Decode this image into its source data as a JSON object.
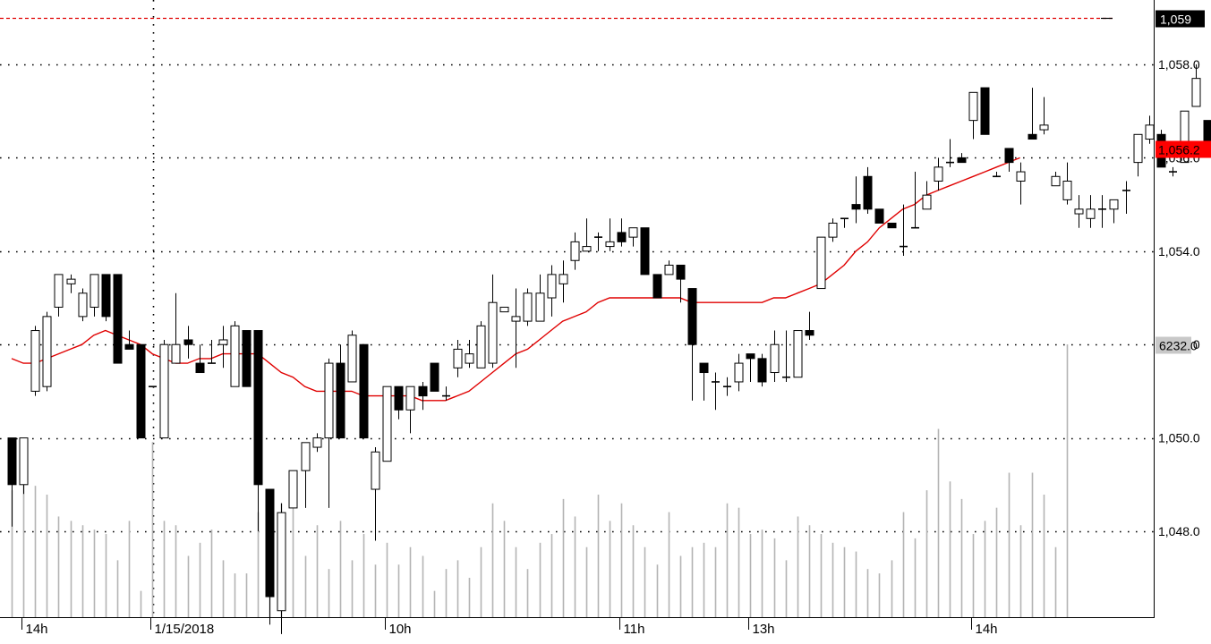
{
  "chart_data": {
    "type": "candlestick",
    "title": "",
    "xlabel": "",
    "ylabel": "",
    "ylim": [
      1045.8,
      1059.4
    ],
    "grid": true,
    "price_ticks": [
      "1,058.0",
      "1,056.0",
      "1,054.0",
      "1,052.0",
      "1,050.0",
      "1,048.0"
    ],
    "time_labels": [
      {
        "text": "14h",
        "index": 1
      },
      {
        "text": "1/15/2018",
        "index": 12
      },
      {
        "text": "10h",
        "index": 32
      },
      {
        "text": "11h",
        "index": 52
      },
      {
        "text": "13h",
        "index": 63
      },
      {
        "text": "14h",
        "index": 82
      }
    ],
    "current_price_label": "1,056.2",
    "current_price": 1056.2,
    "reference_line_label": "1,059",
    "reference_line": 1059.0,
    "volume_label": "6232.0",
    "volume_max": 6232,
    "colors": {
      "up_candle": "#ffffff",
      "down_candle": "#000000",
      "moving_average": "#e00000",
      "volume": "#b4b4b4",
      "reference_line": "#e00000",
      "current_price_tag": "#ff0000",
      "volume_tag": "#c8c8c8"
    },
    "series": [
      {
        "name": "",
        "kind": "ohlc",
        "candles": [
          [
            1050,
            1050,
            1048.1,
            1049
          ],
          [
            1049,
            1050,
            1048.8,
            1050
          ],
          [
            1051,
            1052.4,
            1050.9,
            1052.3
          ],
          [
            1051.1,
            1052.7,
            1051,
            1052.6
          ],
          [
            1052.8,
            1053.5,
            1052.6,
            1053.5
          ],
          [
            1053.3,
            1053.5,
            1053.1,
            1053.4
          ],
          [
            1052.6,
            1053.2,
            1052.5,
            1053.1
          ],
          [
            1052.8,
            1053.5,
            1052.6,
            1053.5
          ],
          [
            1053.5,
            1053.5,
            1052.5,
            1052.6
          ],
          [
            1053.5,
            1053.5,
            1051.6,
            1051.6
          ],
          [
            1052,
            1052.3,
            1051.9,
            1051.9
          ],
          [
            1052,
            1052,
            1050,
            1050
          ],
          [
            1051.1,
            1051.1,
            1051.1,
            1051.1
          ],
          [
            1050,
            1052.1,
            1050,
            1052
          ],
          [
            1051.6,
            1053.1,
            1051.6,
            1052
          ],
          [
            1052.1,
            1052.4,
            1051.7,
            1052
          ],
          [
            1051.6,
            1052,
            1051.4,
            1051.4
          ],
          [
            1051.6,
            1052.1,
            1051.6,
            1051.6
          ],
          [
            1052,
            1052.4,
            1051.5,
            1052.1
          ],
          [
            1051.1,
            1052.5,
            1051.1,
            1052.4
          ],
          [
            1052.3,
            1052.3,
            1051.1,
            1051.1
          ],
          [
            1052.3,
            1052.3,
            1048,
            1049
          ],
          [
            1048.9,
            1048.9,
            1046,
            1046.6
          ],
          [
            1046.3,
            1048.6,
            1045.8,
            1048.4
          ],
          [
            1048.5,
            1049.3,
            1048.5,
            1049.3
          ],
          [
            1049.3,
            1049.9,
            1048.5,
            1049.9
          ],
          [
            1049.8,
            1050.1,
            1049.7,
            1050
          ],
          [
            1050,
            1051.7,
            1048.5,
            1051.6
          ],
          [
            1051.6,
            1052,
            1050,
            1050
          ],
          [
            1051.2,
            1052.3,
            1051.2,
            1052.2
          ],
          [
            1052,
            1052,
            1050,
            1050
          ],
          [
            1048.9,
            1049.8,
            1047.8,
            1049.7
          ],
          [
            1049.5,
            1051.1,
            1049.5,
            1051.1
          ],
          [
            1051.1,
            1051.1,
            1050.4,
            1050.6
          ],
          [
            1050.6,
            1051.1,
            1050.1,
            1051.1
          ],
          [
            1051.1,
            1051.2,
            1050.6,
            1050.9
          ],
          [
            1051.6,
            1051.6,
            1051,
            1051
          ],
          [
            1050.9,
            1051.1,
            1050.8,
            1050.9
          ],
          [
            1051.5,
            1052.1,
            1051.3,
            1051.9
          ],
          [
            1051.6,
            1052.1,
            1051.5,
            1051.8
          ],
          [
            1051.5,
            1052.5,
            1051.5,
            1052.4
          ],
          [
            1051.6,
            1053.5,
            1051.5,
            1052.9
          ],
          [
            1052.7,
            1052.8,
            1052.7,
            1052.8
          ],
          [
            1052.5,
            1053.2,
            1051.5,
            1052.6
          ],
          [
            1052.5,
            1053.2,
            1052.4,
            1053.1
          ],
          [
            1052.5,
            1053.5,
            1052.5,
            1053.1
          ],
          [
            1053,
            1053.7,
            1052.6,
            1053.5
          ],
          [
            1053.3,
            1053.8,
            1052.9,
            1053.5
          ],
          [
            1053.8,
            1054.4,
            1053.6,
            1054.2
          ],
          [
            1054,
            1054.7,
            1054,
            1054.1
          ],
          [
            1054.3,
            1054.4,
            1054,
            1054.3
          ],
          [
            1054.1,
            1054.7,
            1054,
            1054.2
          ],
          [
            1054.4,
            1054.7,
            1054.1,
            1054.2
          ],
          [
            1054.3,
            1054.5,
            1054.1,
            1054.5
          ],
          [
            1054.5,
            1054.5,
            1053.5,
            1053.5
          ],
          [
            1053.5,
            1053.5,
            1053,
            1053
          ],
          [
            1053.5,
            1053.8,
            1053.5,
            1053.7
          ],
          [
            1053.7,
            1053.7,
            1052.9,
            1053.4
          ],
          [
            1053.2,
            1053.2,
            1050.8,
            1052
          ],
          [
            1051.6,
            1051.6,
            1050.8,
            1051.4
          ],
          [
            1051.2,
            1051.4,
            1050.6,
            1051.2
          ],
          [
            1051.1,
            1051.3,
            1050.9,
            1051.1
          ],
          [
            1051.2,
            1051.8,
            1051,
            1051.6
          ],
          [
            1051.8,
            1051.8,
            1051.2,
            1051.7
          ],
          [
            1051.7,
            1051.8,
            1051.1,
            1051.2
          ],
          [
            1051.4,
            1052.3,
            1051.2,
            1052
          ],
          [
            1051.3,
            1052.3,
            1051.2,
            1051.3
          ],
          [
            1051.3,
            1052.2,
            1051.3,
            1052.3
          ],
          [
            1052.3,
            1052.7,
            1052.1,
            1052.2
          ],
          [
            1053.2,
            1054.3,
            1053.2,
            1054.3
          ],
          [
            1054.3,
            1054.7,
            1054.2,
            1054.6
          ],
          [
            1054.7,
            1054.7,
            1054.5,
            1054.7
          ],
          [
            1055,
            1055.6,
            1054.6,
            1054.9
          ],
          [
            1055.6,
            1055.8,
            1054.8,
            1054.9
          ],
          [
            1054.9,
            1054.9,
            1054.6,
            1054.6
          ],
          [
            1054.6,
            1054.6,
            1054.5,
            1054.5
          ],
          [
            1054.1,
            1055,
            1053.9,
            1054.1
          ],
          [
            1054.5,
            1055.7,
            1054.5,
            1054.5
          ],
          [
            1054.9,
            1055.5,
            1054.9,
            1055.2
          ],
          [
            1055.5,
            1056,
            1055.3,
            1055.8
          ],
          [
            1055.9,
            1056.4,
            1055.8,
            1055.9
          ],
          [
            1056,
            1056.1,
            1055.9,
            1055.9
          ],
          [
            1056.8,
            1057.4,
            1056.4,
            1057.4
          ],
          [
            1057.5,
            1057.5,
            1056.5,
            1056.5
          ],
          [
            1055.6,
            1055.7,
            1055.6,
            1055.6
          ],
          [
            1056.2,
            1056.2,
            1055.7,
            1055.9
          ],
          [
            1055.5,
            1055.9,
            1055,
            1055.7
          ],
          [
            1056.5,
            1057.5,
            1056.4,
            1056.4
          ],
          [
            1056.6,
            1057.3,
            1056.5,
            1056.7
          ],
          [
            1055.4,
            1055.7,
            1055.4,
            1055.6
          ],
          [
            1055.1,
            1055.9,
            1055,
            1055.5
          ],
          [
            1054.8,
            1055.2,
            1054.5,
            1054.9
          ],
          [
            1054.7,
            1055.2,
            1054.5,
            1054.9
          ],
          [
            1054.9,
            1055.2,
            1054.5,
            1054.9
          ],
          [
            1054.9,
            1055.1,
            1054.6,
            1055.1
          ],
          [
            1055.3,
            1055.5,
            1054.8,
            1055.3
          ],
          [
            1055.9,
            1056.5,
            1055.6,
            1056.5
          ],
          [
            1056.4,
            1056.9,
            1056.3,
            1056.7
          ],
          [
            1056.5,
            1056.6,
            1055.8,
            1055.8
          ],
          [
            1055.7,
            1055.8,
            1055.6,
            1055.7
          ],
          [
            1055.9,
            1057,
            1055.9,
            1057
          ],
          [
            1057.1,
            1058,
            1057.1,
            1057.7
          ],
          [
            1056.8,
            1056.8,
            1056.1,
            1056.2
          ]
        ]
      },
      {
        "name": "",
        "kind": "moving_average",
        "values": [
          1051.7,
          1051.6,
          1051.6,
          1051.7,
          1051.8,
          1051.9,
          1052.0,
          1052.2,
          1052.3,
          1052.2,
          1052.1,
          1052.0,
          1051.8,
          1051.7,
          1051.6,
          1051.6,
          1051.7,
          1051.7,
          1051.8,
          1051.8,
          1051.8,
          1051.8,
          1051.6,
          1051.4,
          1051.3,
          1051.1,
          1051.0,
          1051.0,
          1051.0,
          1051.0,
          1050.9,
          1050.9,
          1050.9,
          1050.9,
          1050.9,
          1050.8,
          1050.8,
          1050.8,
          1050.9,
          1051.0,
          1051.2,
          1051.4,
          1051.6,
          1051.8,
          1051.9,
          1052.1,
          1052.3,
          1052.5,
          1052.6,
          1052.7,
          1052.9,
          1053.0,
          1053.0,
          1053.0,
          1053.0,
          1053.0,
          1053.0,
          1053.0,
          1052.9,
          1052.9,
          1052.9,
          1052.9,
          1052.9,
          1052.9,
          1052.9,
          1053.0,
          1053.0,
          1053.1,
          1053.2,
          1053.3,
          1053.5,
          1053.7,
          1054.0,
          1054.2,
          1054.5,
          1054.7,
          1054.9,
          1055.0,
          1055.2,
          1055.3,
          1055.4,
          1055.5,
          1055.6,
          1055.7,
          1055.8,
          1055.9,
          1056.0
        ]
      },
      {
        "name": "",
        "kind": "volume",
        "values": [
          2900,
          3600,
          3000,
          2800,
          2300,
          2200,
          2100,
          2000,
          1900,
          1300,
          2200,
          600,
          4000,
          2200,
          2100,
          1400,
          1700,
          2000,
          1300,
          1000,
          1000,
          2400,
          1200,
          2600,
          2700,
          1400,
          2100,
          1100,
          2200,
          1300,
          1900,
          1200,
          1700,
          1200,
          1600,
          1400,
          600,
          1100,
          1300,
          900,
          1600,
          2600,
          2200,
          1600,
          1100,
          1700,
          1900,
          2700,
          2300,
          1600,
          2800,
          2200,
          2600,
          2100,
          1600,
          1200,
          2400,
          1400,
          1600,
          1700,
          1600,
          2600,
          2500,
          1900,
          2000,
          1800,
          1300,
          2300,
          2100,
          1900,
          1700,
          1600,
          1500,
          1100,
          1000,
          1300,
          2400,
          1800,
          2900,
          4300,
          3100,
          2700,
          1900,
          2200,
          2500,
          3300,
          2100,
          3300,
          2800,
          1600
        ]
      }
    ]
  }
}
